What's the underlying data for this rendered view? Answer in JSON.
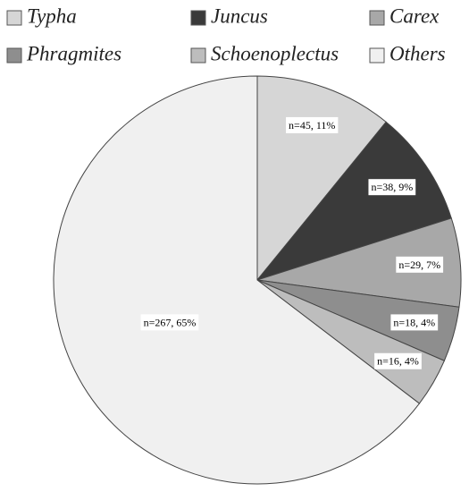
{
  "chart_data": {
    "type": "pie",
    "categories": [
      "Typha",
      "Juncus",
      "Carex",
      "Phragmites",
      "Schoenoplectus",
      "Others"
    ],
    "values": [
      45,
      38,
      29,
      18,
      16,
      267
    ],
    "value_labels": [
      "n=45, 11%",
      "n=38, 9%",
      "n=29, 7%",
      "n=18, 4%",
      "n=16, 4%",
      "n=267, 65%"
    ],
    "colors": [
      "#d6d6d6",
      "#3a3a3a",
      "#a8a8a8",
      "#8e8e8e",
      "#bdbdbd",
      "#f0f0f0"
    ],
    "legend": "top"
  }
}
